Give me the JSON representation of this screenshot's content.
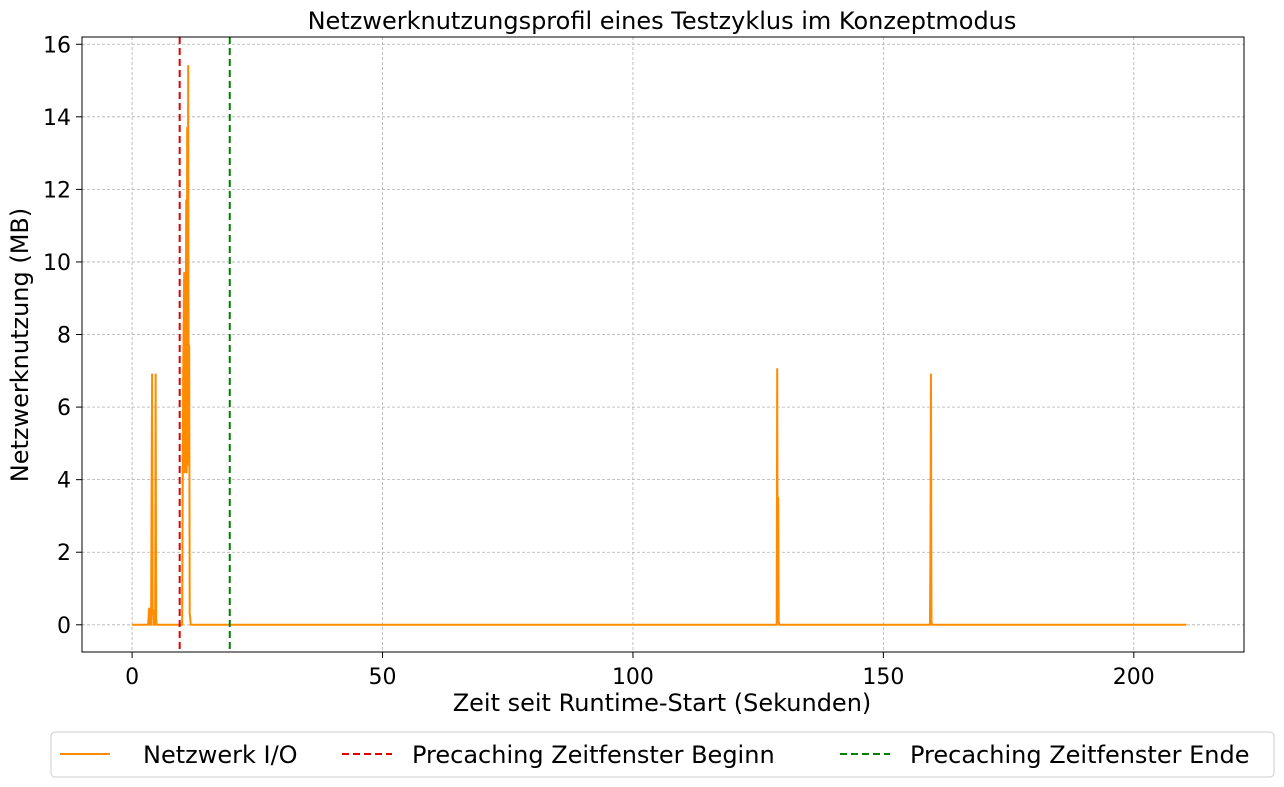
{
  "chart_data": {
    "type": "line",
    "title": "Netzwerknutzungsprofil eines Testzyklus im Konzeptmodus",
    "xlabel": "Zeit seit Runtime-Start (Sekunden)",
    "ylabel": "Netzwerknutzung (MB)",
    "xlim": [
      -10,
      222
    ],
    "ylim": [
      -0.75,
      16.2
    ],
    "xticks": [
      0,
      50,
      100,
      150,
      200
    ],
    "yticks": [
      0,
      2,
      4,
      6,
      8,
      10,
      12,
      14,
      16
    ],
    "grid": true,
    "legend_position": "bottom",
    "series": [
      {
        "name": "Netzwerk I/O",
        "color": "#ff8c00",
        "x": [
          0,
          3.2,
          3.4,
          3.5,
          3.7,
          3.8,
          3.9,
          4.0,
          4.1,
          4.2,
          4.3,
          4.4,
          4.5,
          4.6,
          4.7,
          4.8,
          4.9,
          5.0,
          5.1,
          5.2,
          5.3,
          5.4,
          5.5,
          9.8,
          10.0,
          10.2,
          10.4,
          10.5,
          10.6,
          10.7,
          10.8,
          10.9,
          11.0,
          11.1,
          11.2,
          11.3,
          11.4,
          11.5,
          11.6,
          11.7,
          11.8,
          11.9,
          12.0,
          12.1,
          12.3,
          128.7,
          128.8,
          128.9,
          129.0,
          129.1,
          129.2,
          129.3,
          159.3,
          159.4,
          159.5,
          159.6,
          159.7,
          210.5
        ],
        "y": [
          0,
          0,
          0.45,
          0,
          0.4,
          0,
          3.8,
          6.9,
          0.3,
          0.4,
          0,
          0.35,
          0,
          0,
          6.9,
          0.2,
          0,
          0,
          0,
          0,
          0,
          0,
          0,
          0,
          0,
          6.8,
          9.7,
          4.2,
          8.5,
          6.7,
          11.7,
          4.2,
          13.7,
          6.9,
          15.4,
          4.4,
          7.7,
          0.3,
          0.2,
          0,
          0,
          0,
          0,
          0,
          0,
          0,
          7.05,
          0.1,
          3.5,
          0.1,
          0,
          0,
          0,
          2.2,
          6.9,
          0.1,
          0,
          0
        ]
      }
    ],
    "vlines": [
      {
        "name": "Precaching Zeitfenster Beginn",
        "x": 9.5,
        "color": "#e00000",
        "style": "dashed"
      },
      {
        "name": "Precaching Zeitfenster Ende",
        "x": 19.5,
        "color": "#008000",
        "style": "dashed"
      }
    ]
  }
}
